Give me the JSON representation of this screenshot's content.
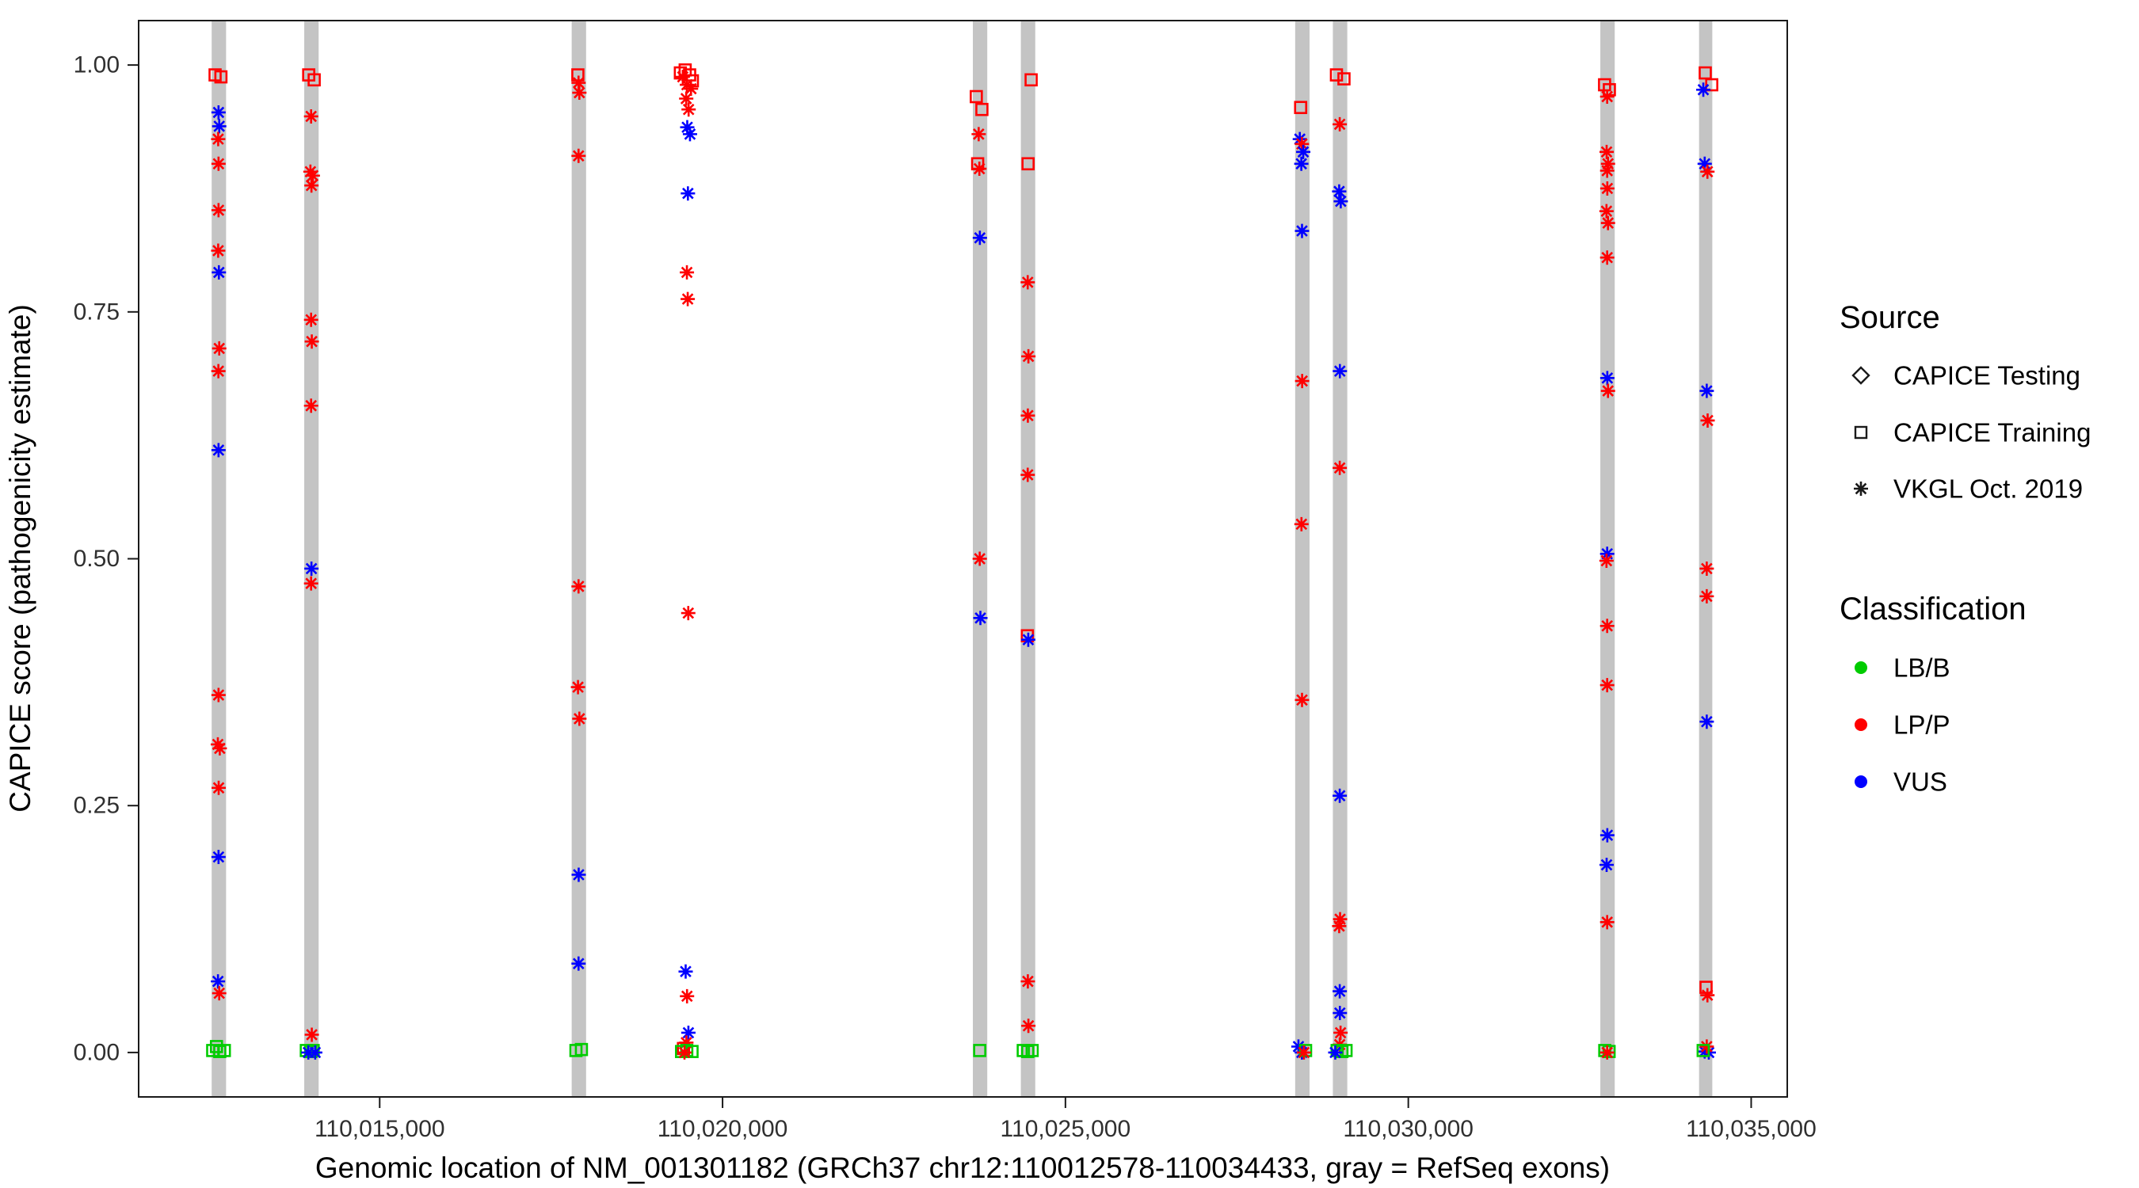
{
  "chart_data": {
    "type": "scatter",
    "title": "",
    "xlabel": "Genomic location of NM_001301182 (GRCh37 chr12:110012578-110034433, gray = RefSeq exons)",
    "ylabel": "CAPICE score (pathogenicity estimate)",
    "xlim": [
      110011485,
      110035526
    ],
    "ylim": [
      -0.045,
      1.045
    ],
    "grid": false,
    "x_ticks": [
      {
        "value": 110015000,
        "label": "110,015,000"
      },
      {
        "value": 110020000,
        "label": "110,020,000"
      },
      {
        "value": 110025000,
        "label": "110,025,000"
      },
      {
        "value": 110030000,
        "label": "110,030,000"
      },
      {
        "value": 110035000,
        "label": "110,035,000"
      }
    ],
    "y_ticks": [
      {
        "value": 0.0,
        "label": "0.00"
      },
      {
        "value": 0.25,
        "label": "0.25"
      },
      {
        "value": 0.5,
        "label": "0.50"
      },
      {
        "value": 0.75,
        "label": "0.75"
      },
      {
        "value": 1.0,
        "label": "1.00"
      }
    ],
    "exon_color": "#c4c4c4",
    "exons": [
      {
        "start": 110012550,
        "end": 110012760
      },
      {
        "start": 110013900,
        "end": 110014110
      },
      {
        "start": 110017800,
        "end": 110018010
      },
      {
        "start": 110023650,
        "end": 110023860
      },
      {
        "start": 110024350,
        "end": 110024560
      },
      {
        "start": 110028350,
        "end": 110028560
      },
      {
        "start": 110028900,
        "end": 110029110
      },
      {
        "start": 110032800,
        "end": 110033010
      },
      {
        "start": 110034240,
        "end": 110034433
      }
    ],
    "legend": {
      "source": {
        "title": "Source",
        "items": [
          {
            "label": "CAPICE Testing",
            "marker": "diamond"
          },
          {
            "label": "CAPICE Training",
            "marker": "square"
          },
          {
            "label": "VKGL Oct. 2019",
            "marker": "asterisk"
          }
        ]
      },
      "classification": {
        "title": "Classification",
        "items": [
          {
            "label": "LB/B",
            "color": "#00cc00"
          },
          {
            "label": "LP/P",
            "color": "#ff0000"
          },
          {
            "label": "VUS",
            "color": "#0000ff"
          }
        ]
      }
    },
    "class_colors": {
      "LB/B": "#00cc00",
      "LP/P": "#ff0000",
      "VUS": "#0000ff"
    },
    "source_markers": {
      "testing": "diamond",
      "training": "square",
      "vkgl": "asterisk"
    },
    "points_format": [
      "x",
      "y",
      "source",
      "classification"
    ],
    "points": [
      [
        110012600,
        0.99,
        "training",
        "LP/P"
      ],
      [
        110012685,
        0.988,
        "training",
        "LP/P"
      ],
      [
        110012650,
        0.952,
        "vkgl",
        "VUS"
      ],
      [
        110012660,
        0.938,
        "vkgl",
        "VUS"
      ],
      [
        110012645,
        0.925,
        "vkgl",
        "LP/P"
      ],
      [
        110012650,
        0.9,
        "vkgl",
        "LP/P"
      ],
      [
        110012650,
        0.853,
        "vkgl",
        "LP/P"
      ],
      [
        110012645,
        0.812,
        "vkgl",
        "LP/P"
      ],
      [
        110012655,
        0.79,
        "vkgl",
        "VUS"
      ],
      [
        110012660,
        0.713,
        "vkgl",
        "LP/P"
      ],
      [
        110012648,
        0.69,
        "vkgl",
        "LP/P"
      ],
      [
        110012650,
        0.61,
        "vkgl",
        "VUS"
      ],
      [
        110012650,
        0.362,
        "vkgl",
        "LP/P"
      ],
      [
        110012640,
        0.312,
        "vkgl",
        "LP/P"
      ],
      [
        110012668,
        0.308,
        "vkgl",
        "LP/P"
      ],
      [
        110012652,
        0.268,
        "vkgl",
        "LP/P"
      ],
      [
        110012650,
        0.198,
        "vkgl",
        "VUS"
      ],
      [
        110012642,
        0.072,
        "vkgl",
        "VUS"
      ],
      [
        110012660,
        0.06,
        "vkgl",
        "LP/P"
      ],
      [
        110012565,
        0.002,
        "training",
        "LB/B"
      ],
      [
        110012620,
        0.006,
        "training",
        "LB/B"
      ],
      [
        110012668,
        0.001,
        "training",
        "LB/B"
      ],
      [
        110012735,
        0.002,
        "training",
        "LB/B"
      ],
      [
        110013965,
        0.99,
        "training",
        "LP/P"
      ],
      [
        110014045,
        0.985,
        "training",
        "LP/P"
      ],
      [
        110014000,
        0.948,
        "vkgl",
        "LP/P"
      ],
      [
        110013990,
        0.892,
        "vkgl",
        "LP/P"
      ],
      [
        110014025,
        0.888,
        "vkgl",
        "LP/P"
      ],
      [
        110014005,
        0.878,
        "vkgl",
        "LP/P"
      ],
      [
        110014000,
        0.742,
        "vkgl",
        "LP/P"
      ],
      [
        110014010,
        0.72,
        "vkgl",
        "LP/P"
      ],
      [
        110014000,
        0.655,
        "vkgl",
        "LP/P"
      ],
      [
        110014005,
        0.49,
        "vkgl",
        "VUS"
      ],
      [
        110014000,
        0.475,
        "vkgl",
        "LP/P"
      ],
      [
        110014010,
        0.018,
        "vkgl",
        "LP/P"
      ],
      [
        110013930,
        0.002,
        "training",
        "LB/B"
      ],
      [
        110013995,
        0.001,
        "training",
        "LB/B"
      ],
      [
        110014030,
        0.002,
        "training",
        "LB/B"
      ],
      [
        110013960,
        0.0,
        "vkgl",
        "VUS"
      ],
      [
        110014060,
        0.0,
        "vkgl",
        "VUS"
      ],
      [
        110017890,
        0.99,
        "training",
        "LP/P"
      ],
      [
        110017900,
        0.982,
        "vkgl",
        "LP/P"
      ],
      [
        110017912,
        0.972,
        "vkgl",
        "LP/P"
      ],
      [
        110017900,
        0.908,
        "vkgl",
        "LP/P"
      ],
      [
        110017900,
        0.472,
        "vkgl",
        "LP/P"
      ],
      [
        110017892,
        0.37,
        "vkgl",
        "LP/P"
      ],
      [
        110017912,
        0.338,
        "vkgl",
        "LP/P"
      ],
      [
        110017902,
        0.18,
        "vkgl",
        "VUS"
      ],
      [
        110017900,
        0.09,
        "vkgl",
        "VUS"
      ],
      [
        110017862,
        0.002,
        "training",
        "LB/B"
      ],
      [
        110017942,
        0.003,
        "training",
        "LB/B"
      ],
      [
        110019385,
        0.992,
        "training",
        "LP/P"
      ],
      [
        110019455,
        0.995,
        "training",
        "LP/P"
      ],
      [
        110019520,
        0.99,
        "training",
        "LP/P"
      ],
      [
        110019560,
        0.984,
        "training",
        "LP/P"
      ],
      [
        110019420,
        0.988,
        "vkgl",
        "LP/P"
      ],
      [
        110019480,
        0.98,
        "vkgl",
        "LP/P"
      ],
      [
        110019540,
        0.976,
        "vkgl",
        "LP/P"
      ],
      [
        110019470,
        0.966,
        "vkgl",
        "LP/P"
      ],
      [
        110019505,
        0.955,
        "vkgl",
        "LP/P"
      ],
      [
        110019485,
        0.937,
        "vkgl",
        "VUS"
      ],
      [
        110019525,
        0.93,
        "vkgl",
        "VUS"
      ],
      [
        110019495,
        0.87,
        "vkgl",
        "VUS"
      ],
      [
        110019480,
        0.79,
        "vkgl",
        "LP/P"
      ],
      [
        110019492,
        0.763,
        "vkgl",
        "LP/P"
      ],
      [
        110019500,
        0.445,
        "vkgl",
        "LP/P"
      ],
      [
        110019462,
        0.082,
        "vkgl",
        "VUS"
      ],
      [
        110019482,
        0.057,
        "vkgl",
        "LP/P"
      ],
      [
        110019502,
        0.02,
        "vkgl",
        "VUS"
      ],
      [
        110019472,
        0.01,
        "vkgl",
        "LP/P"
      ],
      [
        110019430,
        0.004,
        "training",
        "LP/P"
      ],
      [
        110019402,
        0.001,
        "training",
        "LB/B"
      ],
      [
        110019478,
        0.002,
        "training",
        "LB/B"
      ],
      [
        110019555,
        0.001,
        "training",
        "LB/B"
      ],
      [
        110019445,
        0.0,
        "vkgl",
        "LP/P"
      ],
      [
        110023700,
        0.968,
        "training",
        "LP/P"
      ],
      [
        110023782,
        0.955,
        "training",
        "LP/P"
      ],
      [
        110023735,
        0.93,
        "vkgl",
        "LP/P"
      ],
      [
        110023720,
        0.9,
        "training",
        "LP/P"
      ],
      [
        110023745,
        0.895,
        "vkgl",
        "LP/P"
      ],
      [
        110023752,
        0.825,
        "vkgl",
        "VUS"
      ],
      [
        110023750,
        0.5,
        "vkgl",
        "LP/P"
      ],
      [
        110023760,
        0.44,
        "vkgl",
        "VUS"
      ],
      [
        110023750,
        0.002,
        "training",
        "LB/B"
      ],
      [
        110024500,
        0.985,
        "training",
        "LP/P"
      ],
      [
        110024455,
        0.9,
        "training",
        "LP/P"
      ],
      [
        110024450,
        0.78,
        "vkgl",
        "LP/P"
      ],
      [
        110024460,
        0.705,
        "vkgl",
        "LP/P"
      ],
      [
        110024452,
        0.645,
        "vkgl",
        "LP/P"
      ],
      [
        110024450,
        0.585,
        "vkgl",
        "LP/P"
      ],
      [
        110024445,
        0.422,
        "training",
        "LP/P"
      ],
      [
        110024458,
        0.418,
        "vkgl",
        "VUS"
      ],
      [
        110024452,
        0.072,
        "vkgl",
        "LP/P"
      ],
      [
        110024460,
        0.027,
        "vkgl",
        "LP/P"
      ],
      [
        110024385,
        0.002,
        "training",
        "LB/B"
      ],
      [
        110024450,
        0.001,
        "training",
        "LB/B"
      ],
      [
        110024515,
        0.002,
        "training",
        "LB/B"
      ],
      [
        110028430,
        0.957,
        "training",
        "LP/P"
      ],
      [
        110028418,
        0.925,
        "vkgl",
        "VUS"
      ],
      [
        110028448,
        0.92,
        "vkgl",
        "LP/P"
      ],
      [
        110028468,
        0.912,
        "vkgl",
        "VUS"
      ],
      [
        110028440,
        0.9,
        "vkgl",
        "VUS"
      ],
      [
        110028450,
        0.832,
        "vkgl",
        "VUS"
      ],
      [
        110028452,
        0.68,
        "vkgl",
        "LP/P"
      ],
      [
        110028442,
        0.535,
        "vkgl",
        "LP/P"
      ],
      [
        110028450,
        0.357,
        "vkgl",
        "LP/P"
      ],
      [
        110028398,
        0.006,
        "vkgl",
        "VUS"
      ],
      [
        110028448,
        0.0,
        "vkgl",
        "VUS"
      ],
      [
        110028502,
        0.002,
        "training",
        "LB/B"
      ],
      [
        110028478,
        0.0,
        "vkgl",
        "LP/P"
      ],
      [
        110028952,
        0.99,
        "training",
        "LP/P"
      ],
      [
        110029062,
        0.986,
        "training",
        "LP/P"
      ],
      [
        110029000,
        0.94,
        "vkgl",
        "LP/P"
      ],
      [
        110028992,
        0.872,
        "vkgl",
        "VUS"
      ],
      [
        110029015,
        0.862,
        "vkgl",
        "VUS"
      ],
      [
        110029002,
        0.69,
        "vkgl",
        "VUS"
      ],
      [
        110029000,
        0.592,
        "vkgl",
        "LP/P"
      ],
      [
        110029000,
        0.26,
        "vkgl",
        "VUS"
      ],
      [
        110029005,
        0.135,
        "vkgl",
        "LP/P"
      ],
      [
        110028992,
        0.128,
        "vkgl",
        "LP/P"
      ],
      [
        110029000,
        0.062,
        "vkgl",
        "VUS"
      ],
      [
        110029002,
        0.04,
        "vkgl",
        "VUS"
      ],
      [
        110029012,
        0.02,
        "vkgl",
        "LP/P"
      ],
      [
        110029000,
        0.008,
        "vkgl",
        "LP/P"
      ],
      [
        110028962,
        0.002,
        "training",
        "LB/B"
      ],
      [
        110029032,
        0.001,
        "training",
        "LB/B"
      ],
      [
        110029092,
        0.002,
        "training",
        "LB/B"
      ],
      [
        110028935,
        0.0,
        "vkgl",
        "VUS"
      ],
      [
        110032862,
        0.98,
        "training",
        "LP/P"
      ],
      [
        110032932,
        0.975,
        "training",
        "LP/P"
      ],
      [
        110032900,
        0.968,
        "vkgl",
        "LP/P"
      ],
      [
        110032892,
        0.912,
        "vkgl",
        "LP/P"
      ],
      [
        110032912,
        0.9,
        "vkgl",
        "LP/P"
      ],
      [
        110032900,
        0.893,
        "vkgl",
        "LP/P"
      ],
      [
        110032902,
        0.875,
        "vkgl",
        "LP/P"
      ],
      [
        110032890,
        0.852,
        "vkgl",
        "LP/P"
      ],
      [
        110032912,
        0.84,
        "vkgl",
        "LP/P"
      ],
      [
        110032900,
        0.805,
        "vkgl",
        "LP/P"
      ],
      [
        110032902,
        0.683,
        "vkgl",
        "VUS"
      ],
      [
        110032912,
        0.67,
        "vkgl",
        "LP/P"
      ],
      [
        110032900,
        0.505,
        "vkgl",
        "VUS"
      ],
      [
        110032890,
        0.498,
        "vkgl",
        "LP/P"
      ],
      [
        110032900,
        0.432,
        "vkgl",
        "LP/P"
      ],
      [
        110032900,
        0.372,
        "vkgl",
        "LP/P"
      ],
      [
        110032902,
        0.22,
        "vkgl",
        "VUS"
      ],
      [
        110032892,
        0.19,
        "vkgl",
        "VUS"
      ],
      [
        110032900,
        0.132,
        "vkgl",
        "LP/P"
      ],
      [
        110032865,
        0.002,
        "training",
        "LB/B"
      ],
      [
        110032928,
        0.001,
        "training",
        "LB/B"
      ],
      [
        110032900,
        0.0,
        "vkgl",
        "LP/P"
      ],
      [
        110034330,
        0.992,
        "training",
        "LP/P"
      ],
      [
        110034425,
        0.98,
        "training",
        "LP/P"
      ],
      [
        110034302,
        0.975,
        "vkgl",
        "VUS"
      ],
      [
        110034322,
        0.9,
        "vkgl",
        "VUS"
      ],
      [
        110034362,
        0.892,
        "vkgl",
        "LP/P"
      ],
      [
        110034352,
        0.67,
        "vkgl",
        "VUS"
      ],
      [
        110034365,
        0.64,
        "vkgl",
        "LP/P"
      ],
      [
        110034352,
        0.49,
        "vkgl",
        "LP/P"
      ],
      [
        110034352,
        0.462,
        "vkgl",
        "LP/P"
      ],
      [
        110034352,
        0.335,
        "vkgl",
        "VUS"
      ],
      [
        110034342,
        0.066,
        "training",
        "LP/P"
      ],
      [
        110034362,
        0.058,
        "vkgl",
        "LP/P"
      ],
      [
        110034322,
        0.001,
        "vkgl",
        "VUS"
      ],
      [
        110034382,
        0.0,
        "vkgl",
        "VUS"
      ],
      [
        110034352,
        0.006,
        "vkgl",
        "LP/P"
      ],
      [
        110034300,
        0.002,
        "training",
        "LB/B"
      ]
    ]
  }
}
